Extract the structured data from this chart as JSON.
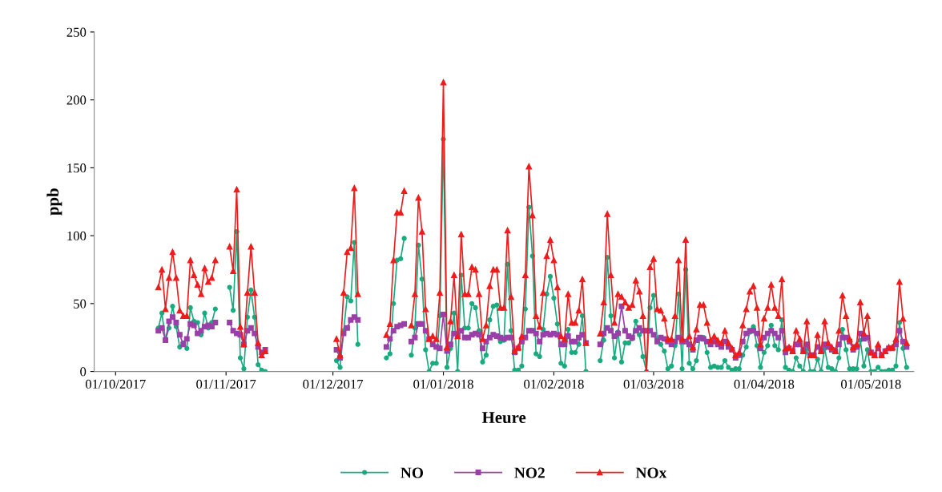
{
  "chart_data": {
    "type": "line",
    "xlabel": "Heure",
    "ylabel": "ppb",
    "x": [
      "2017-10-13",
      "2017-10-14",
      "2017-10-15",
      "2017-10-16",
      "2017-10-17",
      "2017-10-18",
      "2017-10-19",
      "2017-10-20",
      "2017-10-21",
      "2017-10-22",
      "2017-10-23",
      "2017-10-24",
      "2017-10-25",
      "2017-10-26",
      "2017-10-27",
      "2017-10-28",
      "2017-10-29",
      "2017-10-31",
      "2017-11-02",
      "2017-11-03",
      "2017-11-04",
      "2017-11-05",
      "2017-11-06",
      "2017-11-07",
      "2017-11-08",
      "2017-11-09",
      "2017-11-10",
      "2017-11-11",
      "2017-11-12",
      "2017-11-20",
      "2017-12-02",
      "2017-12-03",
      "2017-12-04",
      "2017-12-05",
      "2017-12-06",
      "2017-12-07",
      "2017-12-08",
      "2017-12-12",
      "2017-12-16",
      "2017-12-17",
      "2017-12-18",
      "2017-12-19",
      "2017-12-20",
      "2017-12-21",
      "2017-12-22",
      "2017-12-23",
      "2017-12-24",
      "2017-12-25",
      "2017-12-26",
      "2017-12-27",
      "2017-12-28",
      "2017-12-29",
      "2017-12-30",
      "2017-12-31",
      "2018-01-01",
      "2018-01-02",
      "2018-01-03",
      "2018-01-04",
      "2018-01-05",
      "2018-01-06",
      "2018-01-07",
      "2018-01-08",
      "2018-01-09",
      "2018-01-10",
      "2018-01-11",
      "2018-01-12",
      "2018-01-13",
      "2018-01-14",
      "2018-01-15",
      "2018-01-16",
      "2018-01-17",
      "2018-01-18",
      "2018-01-19",
      "2018-01-20",
      "2018-01-21",
      "2018-01-22",
      "2018-01-23",
      "2018-01-24",
      "2018-01-25",
      "2018-01-26",
      "2018-01-27",
      "2018-01-28",
      "2018-01-29",
      "2018-01-30",
      "2018-01-31",
      "2018-02-01",
      "2018-02-02",
      "2018-02-03",
      "2018-02-04",
      "2018-02-05",
      "2018-02-06",
      "2018-02-07",
      "2018-02-08",
      "2018-02-09",
      "2018-02-10",
      "2018-02-12",
      "2018-02-14",
      "2018-02-15",
      "2018-02-16",
      "2018-02-17",
      "2018-02-18",
      "2018-02-19",
      "2018-02-20",
      "2018-02-21",
      "2018-02-22",
      "2018-02-23",
      "2018-02-24",
      "2018-02-25",
      "2018-02-26",
      "2018-02-27",
      "2018-02-28",
      "2018-03-01",
      "2018-03-02",
      "2018-03-03",
      "2018-03-04",
      "2018-03-05",
      "2018-03-06",
      "2018-03-07",
      "2018-03-08",
      "2018-03-09",
      "2018-03-10",
      "2018-03-11",
      "2018-03-12",
      "2018-03-13",
      "2018-03-14",
      "2018-03-15",
      "2018-03-16",
      "2018-03-17",
      "2018-03-18",
      "2018-03-19",
      "2018-03-20",
      "2018-03-21",
      "2018-03-22",
      "2018-03-23",
      "2018-03-24",
      "2018-03-25",
      "2018-03-26",
      "2018-03-27",
      "2018-03-28",
      "2018-03-29",
      "2018-03-30",
      "2018-03-31",
      "2018-04-01",
      "2018-04-02",
      "2018-04-03",
      "2018-04-04",
      "2018-04-05",
      "2018-04-06",
      "2018-04-07",
      "2018-04-08",
      "2018-04-09",
      "2018-04-10",
      "2018-04-11",
      "2018-04-12",
      "2018-04-13",
      "2018-04-14",
      "2018-04-15",
      "2018-04-16",
      "2018-04-17",
      "2018-04-18",
      "2018-04-19",
      "2018-04-20",
      "2018-04-21",
      "2018-04-22",
      "2018-04-23",
      "2018-04-24",
      "2018-04-25",
      "2018-04-26",
      "2018-04-27",
      "2018-04-28",
      "2018-04-29",
      "2018-04-30",
      "2018-05-01",
      "2018-05-02",
      "2018-05-03",
      "2018-05-04",
      "2018-05-05",
      "2018-05-06",
      "2018-05-07",
      "2018-05-08",
      "2018-05-09",
      "2018-05-10",
      "2018-05-11"
    ],
    "series": [
      {
        "name": "NO",
        "color": "#1aaa7f",
        "marker": "circle",
        "values": [
          32,
          43,
          23,
          32,
          48,
          33,
          18,
          21,
          17,
          47,
          37,
          36,
          27,
          43,
          32,
          36,
          46,
          null,
          62,
          45,
          103,
          10,
          2,
          40,
          60,
          40,
          5,
          1,
          0,
          null,
          8,
          3,
          30,
          55,
          52,
          95,
          20,
          null,
          10,
          13,
          50,
          82,
          83,
          98,
          null,
          12,
          32,
          93,
          68,
          16,
          0,
          6,
          6,
          41,
          171,
          3,
          17,
          43,
          0,
          71,
          32,
          32,
          50,
          47,
          30,
          7,
          12,
          38,
          48,
          49,
          22,
          23,
          79,
          30,
          1,
          1,
          4,
          46,
          121,
          85,
          13,
          11,
          31,
          57,
          70,
          54,
          35,
          6,
          4,
          31,
          14,
          14,
          20,
          41,
          0,
          null,
          8,
          23,
          84,
          41,
          10,
          29,
          7,
          21,
          21,
          24,
          37,
          27,
          11,
          0,
          47,
          56,
          24,
          20,
          15,
          2,
          4,
          19,
          57,
          2,
          75,
          6,
          2,
          8,
          24,
          25,
          14,
          3,
          4,
          3,
          3,
          8,
          3,
          1,
          2,
          2,
          12,
          18,
          29,
          33,
          19,
          3,
          14,
          19,
          34,
          19,
          16,
          38,
          3,
          1,
          0,
          10,
          4,
          0,
          17,
          0,
          0,
          9,
          0,
          17,
          3,
          2,
          0,
          10,
          31,
          16,
          2,
          2,
          2,
          23,
          4,
          16,
          0,
          0,
          3,
          0,
          0,
          1,
          1,
          4,
          36,
          17,
          3
        ]
      },
      {
        "name": "NO2",
        "color": "#9b3fa8",
        "marker": "square",
        "values": [
          30,
          32,
          23,
          37,
          40,
          36,
          27,
          20,
          24,
          35,
          34,
          28,
          30,
          33,
          34,
          33,
          36,
          null,
          36,
          30,
          28,
          27,
          20,
          30,
          32,
          28,
          18,
          14,
          16,
          null,
          16,
          10,
          28,
          32,
          38,
          40,
          38,
          null,
          18,
          24,
          30,
          33,
          34,
          35,
          null,
          22,
          25,
          35,
          35,
          30,
          24,
          20,
          18,
          17,
          42,
          15,
          20,
          28,
          27,
          30,
          25,
          25,
          27,
          28,
          27,
          17,
          22,
          25,
          27,
          26,
          25,
          24,
          25,
          25,
          14,
          17,
          22,
          25,
          30,
          30,
          28,
          22,
          27,
          28,
          27,
          28,
          27,
          20,
          20,
          26,
          22,
          22,
          25,
          27,
          21,
          null,
          20,
          28,
          32,
          30,
          26,
          28,
          48,
          30,
          26,
          25,
          30,
          32,
          30,
          30,
          30,
          27,
          22,
          25,
          24,
          22,
          20,
          22,
          25,
          22,
          22,
          20,
          16,
          23,
          25,
          24,
          22,
          20,
          22,
          20,
          18,
          22,
          18,
          16,
          10,
          12,
          22,
          28,
          30,
          30,
          28,
          17,
          25,
          28,
          30,
          28,
          25,
          30,
          14,
          17,
          15,
          20,
          20,
          15,
          20,
          12,
          12,
          18,
          15,
          20,
          18,
          16,
          15,
          20,
          25,
          25,
          22,
          16,
          18,
          28,
          24,
          25,
          14,
          12,
          17,
          12,
          15,
          17,
          17,
          20,
          30,
          22,
          18
        ]
      },
      {
        "name": "NOx",
        "color": "#ee1c1c",
        "marker": "triangle",
        "values": [
          62,
          75,
          46,
          69,
          88,
          69,
          45,
          41,
          41,
          82,
          71,
          64,
          57,
          76,
          66,
          69,
          82,
          null,
          92,
          74,
          134,
          33,
          20,
          58,
          92,
          58,
          21,
          12,
          15,
          null,
          24,
          12,
          58,
          88,
          91,
          135,
          57,
          null,
          27,
          35,
          82,
          117,
          117,
          133,
          null,
          34,
          57,
          128,
          103,
          46,
          24,
          26,
          24,
          58,
          213,
          18,
          37,
          71,
          26,
          101,
          57,
          57,
          77,
          75,
          57,
          24,
          34,
          63,
          75,
          75,
          47,
          47,
          104,
          55,
          15,
          18,
          26,
          71,
          151,
          115,
          41,
          33,
          58,
          85,
          97,
          82,
          62,
          26,
          24,
          57,
          36,
          36,
          45,
          68,
          21,
          null,
          28,
          51,
          116,
          71,
          36,
          57,
          55,
          51,
          47,
          49,
          67,
          59,
          41,
          0,
          77,
          83,
          46,
          45,
          39,
          24,
          24,
          41,
          82,
          24,
          97,
          26,
          18,
          31,
          49,
          49,
          36,
          23,
          26,
          23,
          21,
          30,
          21,
          17,
          12,
          14,
          34,
          46,
          59,
          63,
          47,
          20,
          39,
          47,
          64,
          47,
          41,
          68,
          17,
          18,
          15,
          30,
          24,
          15,
          37,
          12,
          12,
          27,
          15,
          37,
          21,
          18,
          15,
          30,
          56,
          41,
          24,
          18,
          20,
          51,
          28,
          41,
          14,
          12,
          20,
          12,
          15,
          18,
          18,
          24,
          66,
          39,
          21
        ]
      }
    ],
    "xlim": [
      "2017-09-25",
      "2018-05-13"
    ],
    "xticks": [
      {
        "value": "2017-10-01",
        "label": "01/10/2017"
      },
      {
        "value": "2017-11-01",
        "label": "01/11/2017"
      },
      {
        "value": "2017-12-01",
        "label": "01/12/2017"
      },
      {
        "value": "2018-01-01",
        "label": "01/01/2018"
      },
      {
        "value": "2018-02-01",
        "label": "01/02/2018"
      },
      {
        "value": "2018-03-01",
        "label": "01/03/2018"
      },
      {
        "value": "2018-04-01",
        "label": "01/04/2018"
      },
      {
        "value": "2018-05-01",
        "label": "01/05/2018"
      }
    ],
    "ylim": [
      0,
      250
    ],
    "yticks": [
      0,
      50,
      100,
      150,
      200,
      250
    ],
    "grid": false,
    "legend": "bottom",
    "line_style": "solid"
  }
}
